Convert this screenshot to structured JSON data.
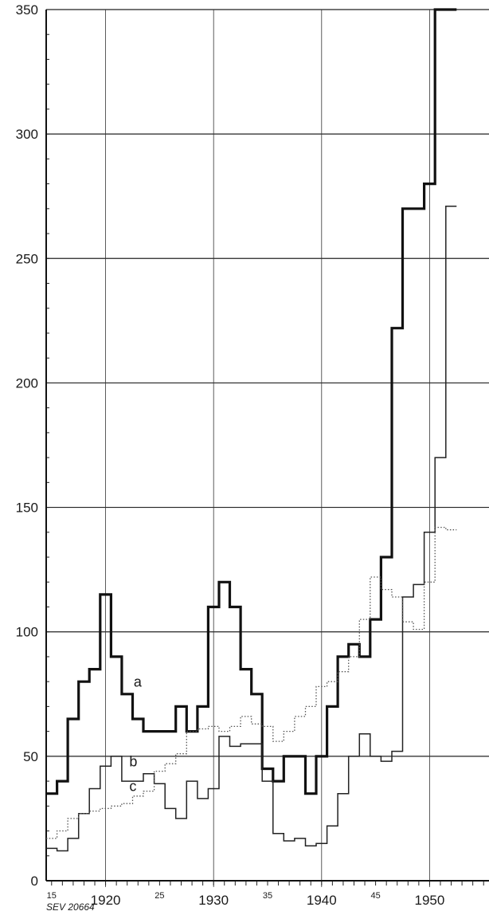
{
  "chart_data": {
    "type": "line",
    "step": true,
    "yticks": [
      0,
      50,
      100,
      150,
      200,
      250,
      300,
      350
    ],
    "ylim": [
      0,
      350
    ],
    "xlim": [
      1914.5,
      1955.5
    ],
    "xticks_major": [
      1920,
      1930,
      1940,
      1950
    ],
    "xticks_minor": [
      {
        "x": 1915,
        "label": "15"
      },
      {
        "x": 1925,
        "label": "25"
      },
      {
        "x": 1935,
        "label": "35"
      },
      {
        "x": 1945,
        "label": "45"
      }
    ],
    "grid": true,
    "code": "SEV 20664",
    "series": [
      {
        "name": "a",
        "style": "thick",
        "x": [
          1915,
          1916,
          1917,
          1918,
          1919,
          1920,
          1921,
          1922,
          1923,
          1924,
          1925,
          1926,
          1927,
          1928,
          1929,
          1930,
          1931,
          1932,
          1933,
          1934,
          1935,
          1936,
          1937,
          1938,
          1939,
          1940,
          1941,
          1942,
          1943,
          1944,
          1945,
          1946,
          1947,
          1948,
          1949,
          1950,
          1951,
          1952
        ],
        "values": [
          35,
          40,
          65,
          80,
          85,
          115,
          90,
          75,
          65,
          60,
          60,
          60,
          70,
          60,
          70,
          110,
          120,
          110,
          85,
          75,
          45,
          40,
          50,
          50,
          35,
          50,
          70,
          90,
          95,
          90,
          105,
          130,
          222,
          270,
          270,
          280,
          350,
          350
        ]
      },
      {
        "name": "b",
        "style": "thin",
        "x": [
          1915,
          1916,
          1917,
          1918,
          1919,
          1920,
          1921,
          1922,
          1923,
          1924,
          1925,
          1926,
          1927,
          1928,
          1929,
          1930,
          1931,
          1932,
          1933,
          1934,
          1935,
          1936,
          1937,
          1938,
          1939,
          1940,
          1941,
          1942,
          1943,
          1944,
          1945,
          1946,
          1947,
          1948,
          1949,
          1950,
          1951,
          1952
        ],
        "values": [
          13,
          12,
          17,
          27,
          37,
          46,
          50,
          40,
          40,
          43,
          39,
          29,
          25,
          40,
          33,
          37,
          58,
          54,
          55,
          55,
          40,
          19,
          16,
          17,
          14,
          15,
          22,
          35,
          50,
          59,
          50,
          48,
          52,
          114,
          119,
          140,
          170,
          271
        ]
      },
      {
        "name": "c",
        "style": "dotted",
        "x": [
          1915,
          1916,
          1917,
          1918,
          1919,
          1920,
          1921,
          1922,
          1923,
          1924,
          1925,
          1926,
          1927,
          1928,
          1929,
          1930,
          1931,
          1932,
          1933,
          1934,
          1935,
          1936,
          1937,
          1938,
          1939,
          1940,
          1941,
          1942,
          1943,
          1944,
          1945,
          1946,
          1947,
          1948,
          1949,
          1950,
          1951,
          1952
        ],
        "values": [
          17,
          20,
          25,
          27,
          28,
          29,
          30,
          31,
          34,
          36,
          44,
          47,
          51,
          60,
          61,
          62,
          60,
          62,
          66,
          63,
          62,
          56,
          60,
          66,
          70,
          78,
          80,
          84,
          90,
          105,
          122,
          117,
          114,
          104,
          101,
          120,
          142,
          141
        ]
      }
    ],
    "series_labels": [
      {
        "series": "a",
        "x": 1922.6,
        "y": 78
      },
      {
        "series": "b",
        "x": 1922.2,
        "y": 46
      },
      {
        "series": "c",
        "x": 1922.2,
        "y": 36
      }
    ]
  }
}
